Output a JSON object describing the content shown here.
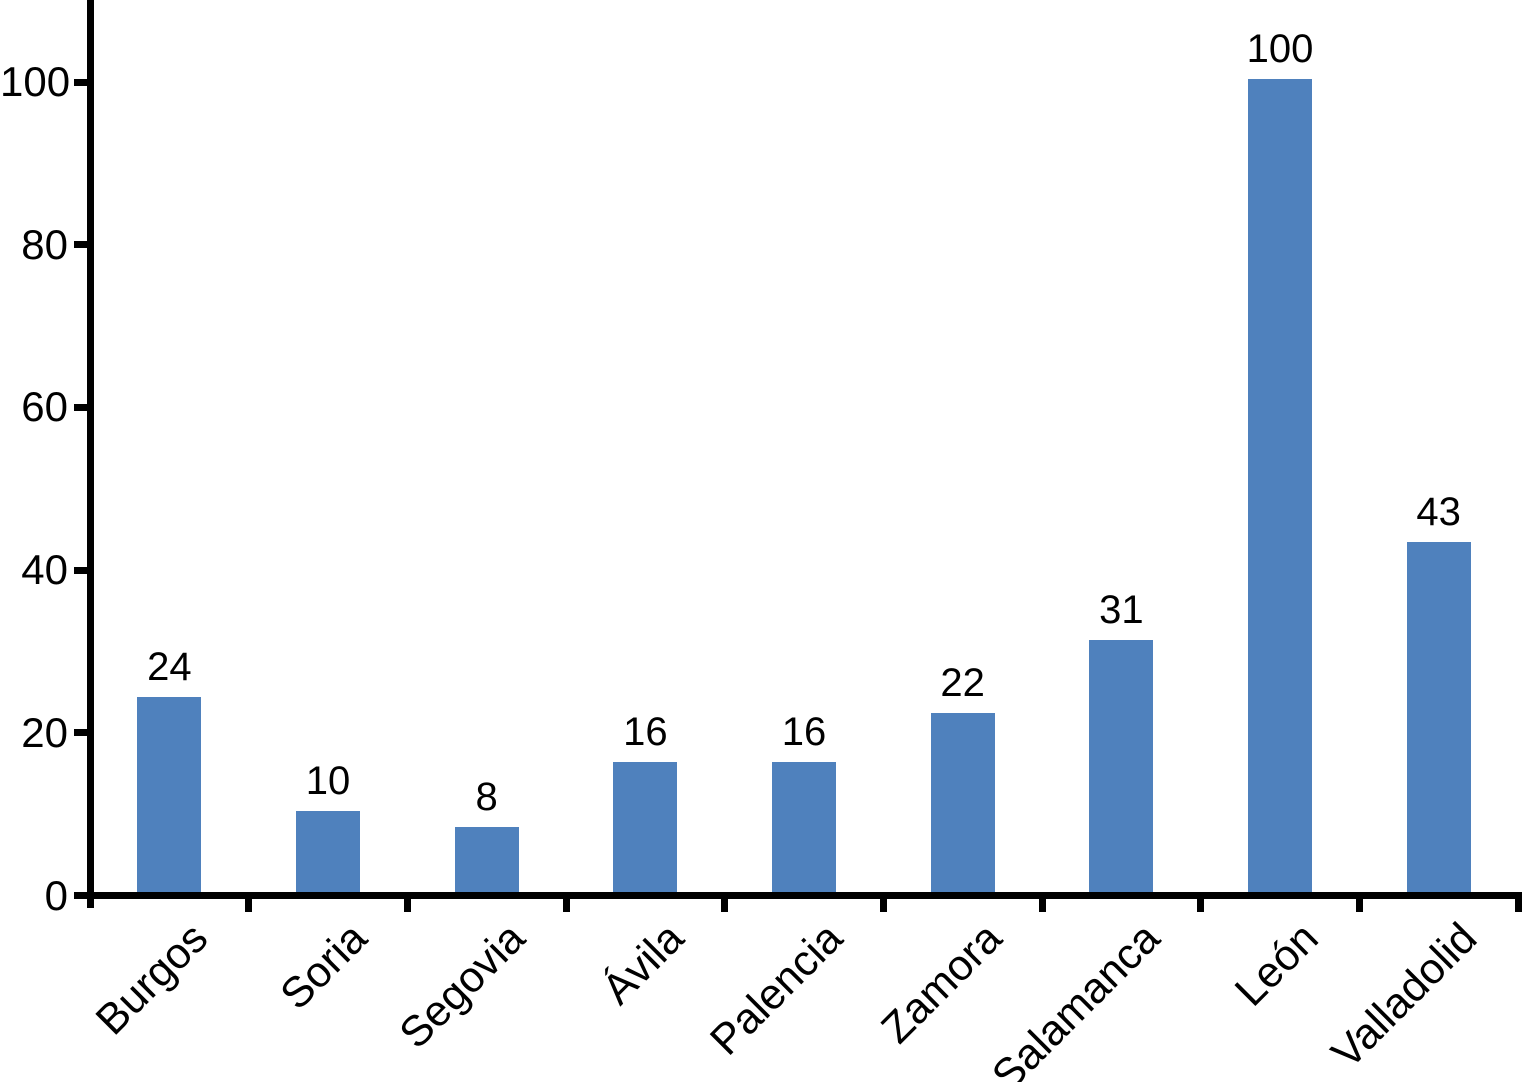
{
  "chart_data": {
    "type": "bar",
    "title": "",
    "xlabel": "",
    "ylabel": "",
    "categories": [
      "Burgos",
      "Soria",
      "Segovia",
      "Ávila",
      "Palencia",
      "Zamora",
      "Salamanca",
      "León",
      "Valladolid"
    ],
    "values": [
      24,
      10,
      8,
      16,
      16,
      22,
      31,
      100,
      43
    ],
    "bar_labels": [
      "24",
      "10",
      "8",
      "16",
      "16",
      "22",
      "31",
      "100",
      "43"
    ],
    "yticks": [
      0,
      20,
      40,
      60,
      80,
      100
    ],
    "ylim": [
      0,
      110
    ],
    "grid": false,
    "legend_position": "none",
    "bar_color": "#4f81bd",
    "axis_color": "#000000",
    "text_color": "#000000",
    "background_color": "#ffffff",
    "x_label_rotation_deg": 45
  }
}
